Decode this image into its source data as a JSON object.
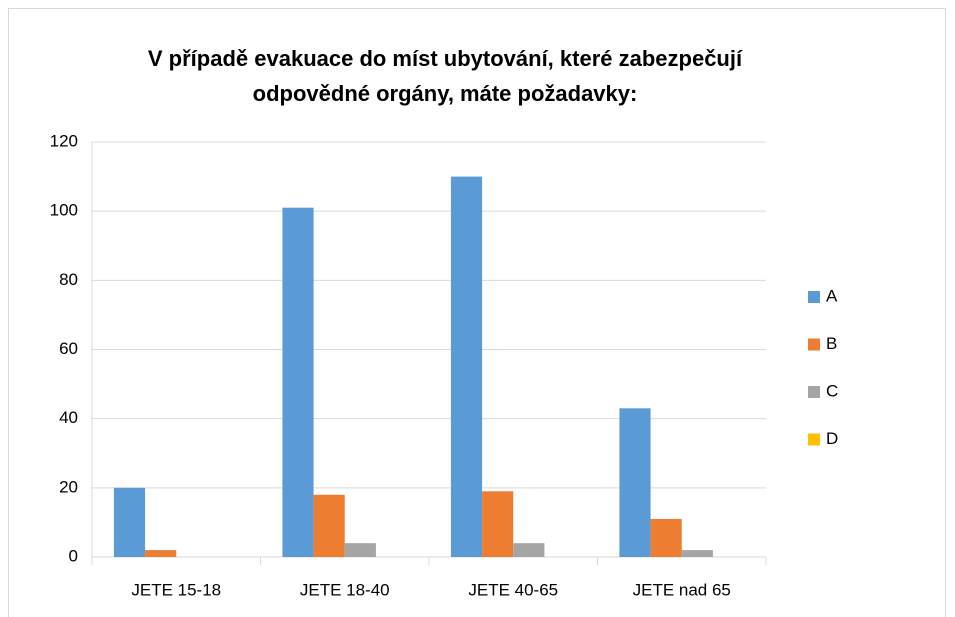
{
  "chart_data": {
    "type": "bar",
    "title": [
      "V případě evakuace do míst ubytování, které zabezpečují",
      "odpovědné orgány, máte požadavky:"
    ],
    "categories": [
      "JETE 15-18",
      "JETE 18-40",
      "JETE 40-65",
      "JETE nad 65"
    ],
    "series": [
      {
        "name": "A",
        "color": "#5b9bd5",
        "values": [
          20,
          101,
          110,
          43
        ]
      },
      {
        "name": "B",
        "color": "#ed7d31",
        "values": [
          2,
          18,
          19,
          11
        ]
      },
      {
        "name": "C",
        "color": "#a5a5a5",
        "values": [
          0,
          4,
          4,
          2
        ]
      },
      {
        "name": "D",
        "color": "#ffc000",
        "values": [
          0,
          0,
          0,
          0
        ]
      }
    ],
    "ylim": [
      0,
      120
    ],
    "yticks": [
      0,
      20,
      40,
      60,
      80,
      100,
      120
    ],
    "grid": true,
    "legend": "right"
  }
}
